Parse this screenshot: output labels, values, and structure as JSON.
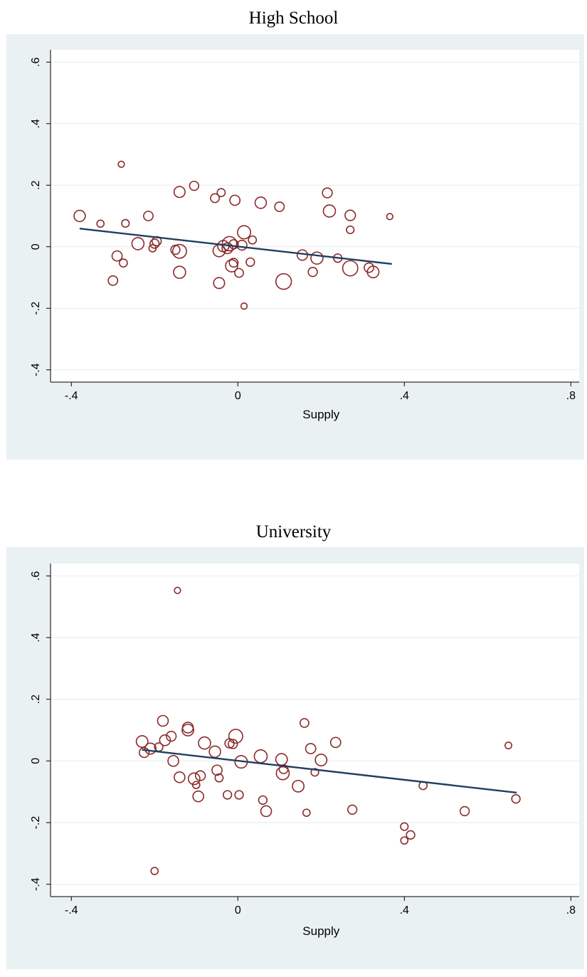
{
  "charts": [
    {
      "title": "High School",
      "type": "scatter",
      "xlabel": "Supply",
      "xlim": [
        -0.45,
        0.82
      ],
      "ylim": [
        -0.44,
        0.64
      ],
      "xticks": [
        {
          "v": -0.4,
          "label": "-.4"
        },
        {
          "v": 0,
          "label": "0"
        },
        {
          "v": 0.4,
          "label": ".4"
        },
        {
          "v": 0.8,
          "label": ".8"
        }
      ],
      "yticks": [
        {
          "v": -0.4,
          "label": "-.4"
        },
        {
          "v": -0.2,
          "label": "-.2"
        },
        {
          "v": 0,
          "label": "0"
        },
        {
          "v": 0.2,
          "label": ".2"
        },
        {
          "v": 0.4,
          "label": ".4"
        },
        {
          "v": 0.6,
          "label": ".6"
        }
      ],
      "fit_line": {
        "x": [
          -0.38,
          0.37
        ],
        "y": [
          0.059,
          -0.056
        ]
      },
      "points": [
        {
          "x": -0.38,
          "y": 0.1,
          "w": 2
        },
        {
          "x": -0.33,
          "y": 0.075,
          "w": 0.8
        },
        {
          "x": -0.28,
          "y": 0.268,
          "w": 0.6
        },
        {
          "x": -0.27,
          "y": 0.076,
          "w": 0.9
        },
        {
          "x": -0.3,
          "y": -0.11,
          "w": 1.4
        },
        {
          "x": -0.29,
          "y": -0.03,
          "w": 1.6
        },
        {
          "x": -0.275,
          "y": -0.053,
          "w": 1
        },
        {
          "x": -0.215,
          "y": 0.1,
          "w": 1.4
        },
        {
          "x": -0.24,
          "y": 0.01,
          "w": 2.3
        },
        {
          "x": -0.2,
          "y": 0.01,
          "w": 1.3
        },
        {
          "x": -0.195,
          "y": 0.018,
          "w": 1.3
        },
        {
          "x": -0.205,
          "y": -0.005,
          "w": 0.8
        },
        {
          "x": -0.14,
          "y": 0.178,
          "w": 1.9
        },
        {
          "x": -0.105,
          "y": 0.198,
          "w": 1.3
        },
        {
          "x": -0.15,
          "y": -0.01,
          "w": 1.3
        },
        {
          "x": -0.14,
          "y": -0.015,
          "w": 3
        },
        {
          "x": -0.14,
          "y": -0.083,
          "w": 2.3
        },
        {
          "x": -0.055,
          "y": 0.158,
          "w": 1.2
        },
        {
          "x": -0.04,
          "y": 0.176,
          "w": 1
        },
        {
          "x": -0.045,
          "y": -0.013,
          "w": 2.3
        },
        {
          "x": -0.035,
          "y": 0.002,
          "w": 2
        },
        {
          "x": -0.045,
          "y": -0.118,
          "w": 1.9
        },
        {
          "x": -0.02,
          "y": 0.01,
          "w": 3.2
        },
        {
          "x": -0.025,
          "y": -0.005,
          "w": 1.8
        },
        {
          "x": -0.015,
          "y": -0.062,
          "w": 2.3
        },
        {
          "x": -0.01,
          "y": -0.052,
          "w": 1.2
        },
        {
          "x": -0.01,
          "y": 0.008,
          "w": 1.3
        },
        {
          "x": -0.007,
          "y": 0.151,
          "w": 1.6
        },
        {
          "x": 0.003,
          "y": -0.085,
          "w": 1.2
        },
        {
          "x": 0.01,
          "y": 0.005,
          "w": 1.5
        },
        {
          "x": 0.015,
          "y": 0.047,
          "w": 2.7
        },
        {
          "x": 0.015,
          "y": -0.193,
          "w": 0.6
        },
        {
          "x": 0.03,
          "y": -0.05,
          "w": 1.1
        },
        {
          "x": 0.035,
          "y": 0.022,
          "w": 1
        },
        {
          "x": 0.055,
          "y": 0.143,
          "w": 2
        },
        {
          "x": 0.11,
          "y": -0.113,
          "w": 3.8
        },
        {
          "x": 0.1,
          "y": 0.13,
          "w": 1.4
        },
        {
          "x": 0.155,
          "y": -0.027,
          "w": 1.7
        },
        {
          "x": 0.18,
          "y": -0.082,
          "w": 1.3
        },
        {
          "x": 0.19,
          "y": -0.037,
          "w": 2.3
        },
        {
          "x": 0.215,
          "y": 0.175,
          "w": 1.5
        },
        {
          "x": 0.22,
          "y": 0.116,
          "w": 2.3
        },
        {
          "x": 0.24,
          "y": -0.037,
          "w": 1.1
        },
        {
          "x": 0.27,
          "y": -0.07,
          "w": 3.6
        },
        {
          "x": 0.27,
          "y": 0.102,
          "w": 1.7
        },
        {
          "x": 0.27,
          "y": 0.055,
          "w": 0.9
        },
        {
          "x": 0.315,
          "y": -0.068,
          "w": 1.4
        },
        {
          "x": 0.325,
          "y": -0.082,
          "w": 2.1
        },
        {
          "x": 0.365,
          "y": 0.098,
          "w": 0.6
        }
      ]
    },
    {
      "title": "University",
      "type": "scatter",
      "xlabel": "Supply",
      "xlim": [
        -0.45,
        0.82
      ],
      "ylim": [
        -0.44,
        0.64
      ],
      "xticks": [
        {
          "v": -0.4,
          "label": "-.4"
        },
        {
          "v": 0,
          "label": "0"
        },
        {
          "v": 0.4,
          "label": ".4"
        },
        {
          "v": 0.8,
          "label": ".8"
        }
      ],
      "yticks": [
        {
          "v": -0.4,
          "label": "-.4"
        },
        {
          "v": -0.2,
          "label": "-.2"
        },
        {
          "v": 0,
          "label": "0"
        },
        {
          "v": 0.2,
          "label": ".2"
        },
        {
          "v": 0.4,
          "label": ".4"
        },
        {
          "v": 0.6,
          "label": ".6"
        }
      ],
      "fit_line": {
        "x": [
          -0.23,
          0.67
        ],
        "y": [
          0.036,
          -0.103
        ]
      },
      "points": [
        {
          "x": -0.145,
          "y": 0.553,
          "w": 0.6
        },
        {
          "x": -0.2,
          "y": -0.357,
          "w": 0.8
        },
        {
          "x": -0.23,
          "y": 0.063,
          "w": 2.1
        },
        {
          "x": -0.225,
          "y": 0.027,
          "w": 1.5
        },
        {
          "x": -0.21,
          "y": 0.04,
          "w": 1.9
        },
        {
          "x": -0.19,
          "y": 0.045,
          "w": 1.1
        },
        {
          "x": -0.18,
          "y": 0.13,
          "w": 1.8
        },
        {
          "x": -0.175,
          "y": 0.067,
          "w": 1.8
        },
        {
          "x": -0.16,
          "y": 0.08,
          "w": 1.5
        },
        {
          "x": -0.155,
          "y": 0.0,
          "w": 1.8
        },
        {
          "x": -0.14,
          "y": -0.053,
          "w": 1.8
        },
        {
          "x": -0.12,
          "y": 0.108,
          "w": 1.8
        },
        {
          "x": -0.12,
          "y": 0.1,
          "w": 2.1
        },
        {
          "x": -0.105,
          "y": -0.058,
          "w": 2.1
        },
        {
          "x": -0.1,
          "y": -0.078,
          "w": 0.8
        },
        {
          "x": -0.095,
          "y": -0.115,
          "w": 1.8
        },
        {
          "x": -0.09,
          "y": -0.048,
          "w": 1.5
        },
        {
          "x": -0.08,
          "y": 0.058,
          "w": 2.3
        },
        {
          "x": -0.055,
          "y": 0.03,
          "w": 2
        },
        {
          "x": -0.05,
          "y": -0.03,
          "w": 1.6
        },
        {
          "x": -0.045,
          "y": -0.055,
          "w": 1
        },
        {
          "x": -0.025,
          "y": -0.11,
          "w": 1.1
        },
        {
          "x": -0.02,
          "y": 0.057,
          "w": 1.3
        },
        {
          "x": -0.012,
          "y": 0.055,
          "w": 1.3
        },
        {
          "x": -0.005,
          "y": 0.08,
          "w": 3
        },
        {
          "x": 0.003,
          "y": -0.11,
          "w": 1.1
        },
        {
          "x": 0.008,
          "y": -0.003,
          "w": 2.4
        },
        {
          "x": 0.055,
          "y": 0.015,
          "w": 2.6
        },
        {
          "x": 0.06,
          "y": -0.127,
          "w": 1.1
        },
        {
          "x": 0.068,
          "y": -0.163,
          "w": 1.8
        },
        {
          "x": 0.105,
          "y": 0.005,
          "w": 2.1
        },
        {
          "x": 0.11,
          "y": -0.027,
          "w": 1.2
        },
        {
          "x": 0.108,
          "y": -0.04,
          "w": 2.6
        },
        {
          "x": 0.145,
          "y": -0.082,
          "w": 2.1
        },
        {
          "x": 0.16,
          "y": 0.123,
          "w": 1.2
        },
        {
          "x": 0.165,
          "y": -0.168,
          "w": 0.8
        },
        {
          "x": 0.175,
          "y": 0.04,
          "w": 1.6
        },
        {
          "x": 0.185,
          "y": -0.037,
          "w": 0.9
        },
        {
          "x": 0.2,
          "y": 0.003,
          "w": 2.1
        },
        {
          "x": 0.235,
          "y": 0.06,
          "w": 1.6
        },
        {
          "x": 0.275,
          "y": -0.158,
          "w": 1.3
        },
        {
          "x": 0.4,
          "y": -0.213,
          "w": 0.9
        },
        {
          "x": 0.4,
          "y": -0.258,
          "w": 0.8
        },
        {
          "x": 0.415,
          "y": -0.24,
          "w": 1.1
        },
        {
          "x": 0.445,
          "y": -0.08,
          "w": 1
        },
        {
          "x": 0.545,
          "y": -0.163,
          "w": 1.3
        },
        {
          "x": 0.65,
          "y": 0.05,
          "w": 0.7
        },
        {
          "x": 0.668,
          "y": -0.123,
          "w": 1.1
        }
      ]
    }
  ],
  "colors": {
    "marker": "#8b2a2a",
    "fit_line": "#1f3f5f",
    "outer_bg": "#eaf1f3",
    "plot_bg": "#ffffff",
    "grid": "#e8eef0"
  }
}
